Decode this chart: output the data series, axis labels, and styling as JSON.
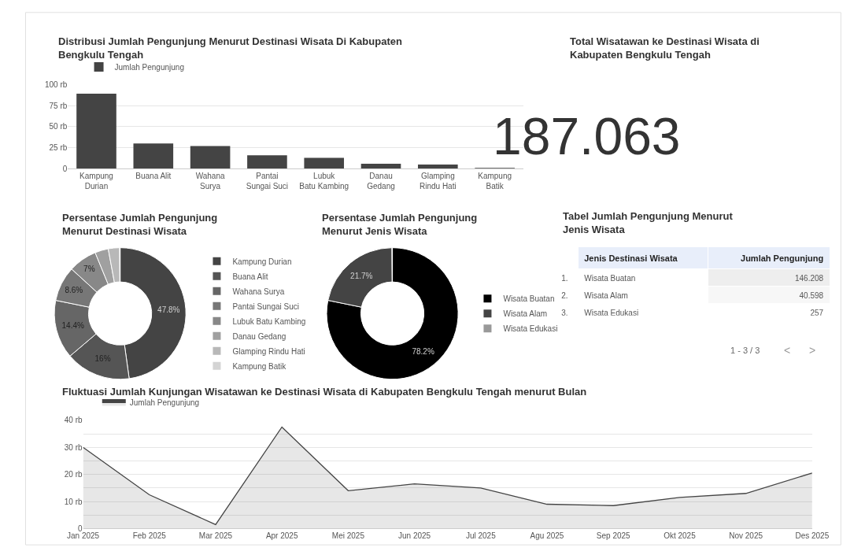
{
  "chart_data": [
    {
      "type": "bar",
      "title": "Distribusi Jumlah Pengunjung Menurut Destinasi Wisata Di Kabupaten Bengkulu Tengah",
      "categories": [
        "Kampung Durian",
        "Buana Alit",
        "Wahana Surya",
        "Pantai Sungai Suci",
        "Lubuk Batu Kambing",
        "Danau Gedang",
        "Glamping Rindu Hati",
        "Kampung Batik"
      ],
      "series": [
        {
          "name": "Jumlah Pengunjung",
          "color": "#444444",
          "values": [
            89,
            30,
            27,
            16,
            13,
            6,
            5,
            0.3
          ]
        }
      ],
      "ylim": [
        0,
        100
      ],
      "yticks": [
        0,
        {
          "value": 25,
          "label": "25 rb"
        },
        {
          "value": 50,
          "label": "50 rb"
        },
        {
          "value": 75,
          "label": "75 rb"
        },
        {
          "value": 100,
          "label": "100 rb"
        }
      ],
      "grid": "y",
      "legend": "top left"
    },
    {
      "type": "other",
      "title": "Total Wisatawan ke Destinasi Wisata di Kabupaten Bengkulu Tengah",
      "annotations": [
        "187.063"
      ]
    },
    {
      "type": "donut",
      "title": "Persentase Jumlah Pengunjung Menurut Destinasi Wisata",
      "categories": [
        "Kampung Durian",
        "Buana Alit",
        "Wahana Surya",
        "Pantai Sungai Suci",
        "Lubuk Batu Kambing",
        "Danau Gedang",
        "Glamping Rindu Hati",
        "Kampung Batik"
      ],
      "values": [
        47.8,
        16,
        14.4,
        8.6,
        7,
        3.3,
        2.8,
        0.1
      ],
      "value_labels": [
        "47.8%",
        "16%",
        "14.4%",
        "8.6%",
        "7%",
        null,
        null,
        null
      ],
      "colors": [
        "#444444",
        "#555555",
        "#666666",
        "#777777",
        "#888888",
        "#a0a0a0",
        "#b8b8b8",
        "#d4d4d4"
      ],
      "legend": "right"
    },
    {
      "type": "donut",
      "title": "Persentase Jumlah Pengunjung Menurut Jenis Wisata",
      "categories": [
        "Wisata Buatan",
        "Wisata Alam",
        "Wisata Edukasi"
      ],
      "values": [
        78.2,
        21.7,
        0.1
      ],
      "value_labels": [
        "78.2%",
        "21.7%",
        null
      ],
      "colors": [
        "#000000",
        "#444444",
        "#999999"
      ],
      "legend": "right"
    },
    {
      "type": "other",
      "title": "Tabel Jumlah Pengunjung Menurut Jenis Wisata",
      "xlabel": "Jenis Destinasi Wisata",
      "ylabel": "Jumlah Pengunjung",
      "categories": [
        "Wisata Buatan",
        "Wisata Alam",
        "Wisata Edukasi"
      ],
      "value_labels": [
        "146.208",
        "40.598",
        "257"
      ],
      "annotations": [
        "1.",
        "2.",
        "3.",
        "1 - 3 / 3",
        "<",
        ">"
      ]
    },
    {
      "type": "area",
      "title": "Fluktuasi Jumlah Kunjungan Wisatawan ke Destinasi Wisata di Kabupaten Bengkulu Tengah menurut Bulan",
      "categories": [
        "Jan 2025",
        "Feb 2025",
        "Mar 2025",
        "Apr 2025",
        "Mei 2025",
        "Jun 2025",
        "Jul 2025",
        "Agu 2025",
        "Sep 2025",
        "Okt 2025",
        "Nov 2025",
        "Des 2025"
      ],
      "series": [
        {
          "name": "Jumlah Pengunjung",
          "color": "#444444",
          "values": [
            30,
            12.5,
            1.5,
            37.5,
            14,
            16.5,
            15,
            9,
            8.5,
            11.5,
            13,
            20.5
          ]
        }
      ],
      "ylim": [
        0,
        40
      ],
      "yticks": [
        0,
        {
          "value": 5,
          "label": null
        },
        {
          "value": 10,
          "label": "10 rb"
        },
        {
          "value": 15,
          "label": null
        },
        {
          "value": 20,
          "label": "20 rb"
        },
        {
          "value": 25,
          "label": null
        },
        {
          "value": 30,
          "label": "30 rb"
        },
        {
          "value": 35,
          "label": null
        },
        {
          "value": 40,
          "label": "40 rb"
        }
      ],
      "grid": "y",
      "legend": "top left"
    }
  ]
}
